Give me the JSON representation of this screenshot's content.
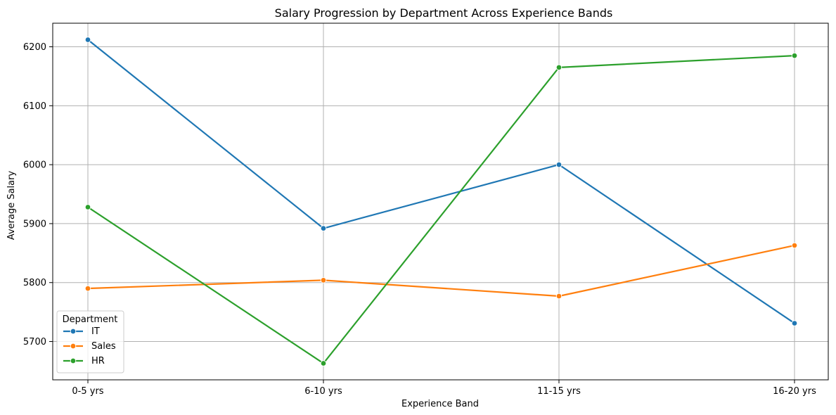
{
  "chart_data": {
    "type": "line",
    "title": "Salary Progression by Department Across Experience Bands",
    "xlabel": "Experience Band",
    "ylabel": "Average Salary",
    "categories": [
      "0-5 yrs",
      "6-10 yrs",
      "11-15 yrs",
      "16-20 yrs"
    ],
    "ylim": [
      5635,
      6240
    ],
    "yticks": [
      5700,
      5800,
      5900,
      6000,
      6100,
      6200
    ],
    "grid": true,
    "legend": {
      "title": "Department",
      "placement": "lower-left"
    },
    "series": [
      {
        "name": "IT",
        "color": "#1f77b4",
        "values": [
          6212,
          5892,
          6000,
          5731
        ]
      },
      {
        "name": "Sales",
        "color": "#ff7f0e",
        "values": [
          5790,
          5804,
          5777,
          5863
        ]
      },
      {
        "name": "HR",
        "color": "#2ca02c",
        "values": [
          5928,
          5663,
          6165,
          6185
        ]
      }
    ]
  }
}
